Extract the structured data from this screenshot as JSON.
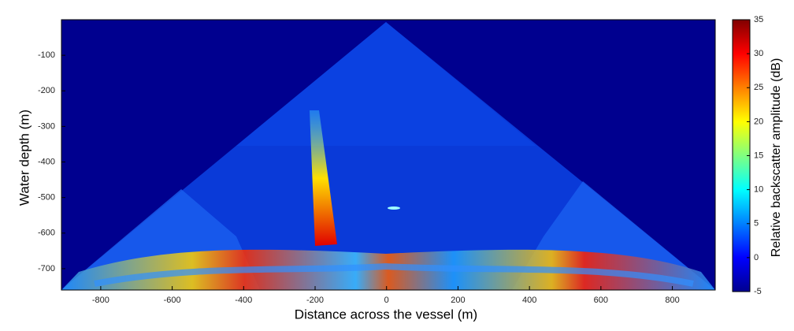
{
  "chart_data": {
    "type": "heatmap",
    "xlabel": "Distance across the vessel (m)",
    "ylabel": "Water depth (m)",
    "xlim": [
      -910,
      920
    ],
    "ylim": [
      -760,
      0
    ],
    "xticks": [
      -800,
      -600,
      -400,
      -200,
      0,
      200,
      400,
      600,
      800
    ],
    "yticks": [
      -700,
      -600,
      -500,
      -400,
      -300,
      -200,
      -100
    ],
    "colormap": "jet",
    "colorbar": {
      "label": "Relative backscatter amplitude (dB)",
      "lim": [
        -5,
        35
      ],
      "ticks": [
        -5,
        0,
        5,
        10,
        15,
        20,
        25,
        30,
        35
      ]
    }
  }
}
